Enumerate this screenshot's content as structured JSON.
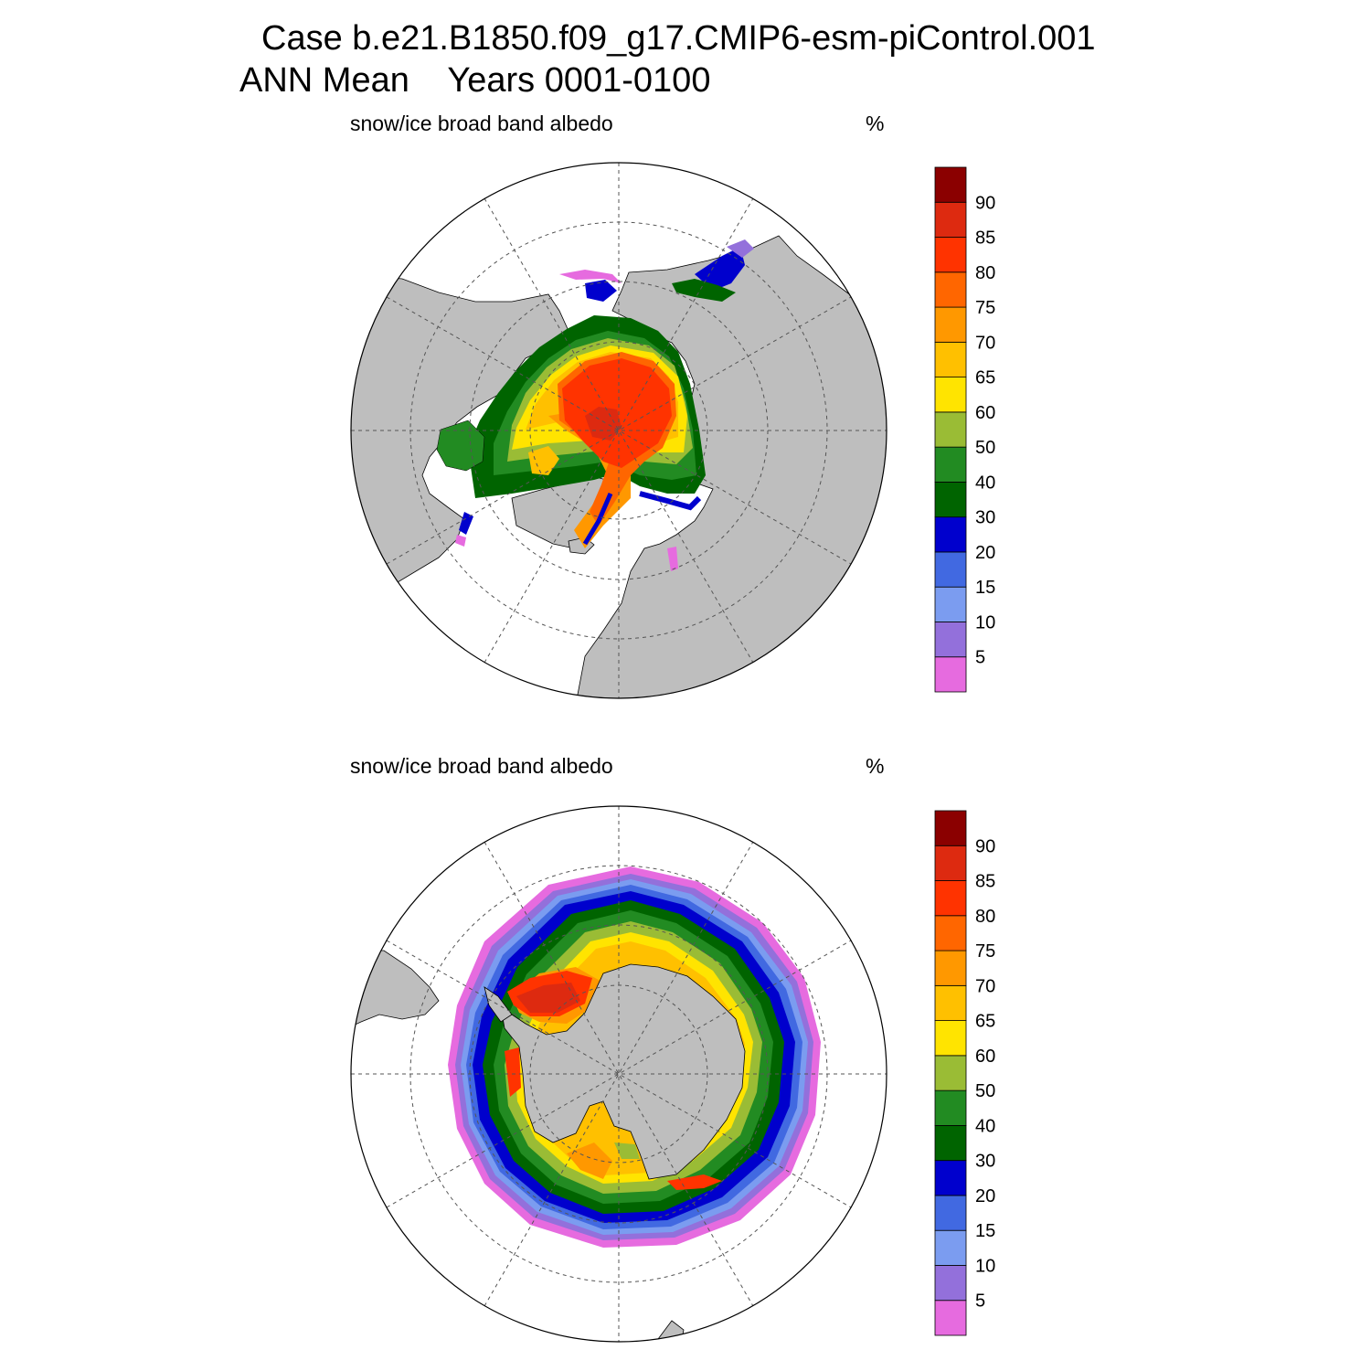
{
  "header": {
    "case_line": "Case b.e21.B1850.f09_g17.CMIP6-esm-piControl.001",
    "mean_label": "ANN Mean",
    "years_label": "Years 0001-0100"
  },
  "colors": {
    "land": "#bebebe",
    "ocean": "#ffffff",
    "palette": [
      "#e66bdf",
      "#9370db",
      "#7b9cf0",
      "#4169e1",
      "#0000cd",
      "#006400",
      "#228b22",
      "#9abc35",
      "#ffe400",
      "#ffc000",
      "#ff9800",
      "#ff6600",
      "#ff3300",
      "#dd2a10",
      "#8b0000"
    ]
  },
  "colorbar": {
    "levels": [
      "5",
      "10",
      "15",
      "20",
      "30",
      "40",
      "50",
      "60",
      "65",
      "70",
      "75",
      "80",
      "85",
      "90"
    ]
  },
  "panels": [
    {
      "id": "north",
      "variable": "snow/ice broad band albedo",
      "units": "%"
    },
    {
      "id": "south",
      "variable": "snow/ice broad band albedo",
      "units": "%"
    }
  ]
}
